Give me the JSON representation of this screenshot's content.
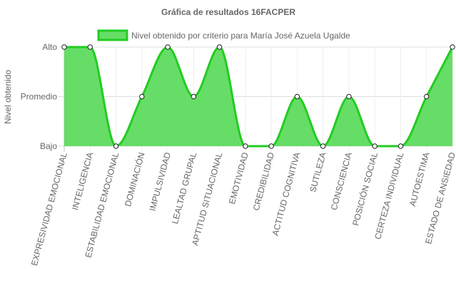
{
  "chart_data": {
    "type": "area",
    "title": "Gráfica de resultados 16FACPER",
    "ylabel": "Nivel obtenido",
    "xlabel": "",
    "y_levels": [
      "Bajo",
      "Promedio",
      "Alto"
    ],
    "ylim": [
      1,
      3
    ],
    "legend_position": "top",
    "grid": true,
    "categories": [
      "EXPRESIVIDAD EMOCIONAL",
      "INTELIGENCIA",
      "ESTABILIDAD EMOCIONAL",
      "DOMINACIÓN",
      "IMPULSIVIDAD",
      "LEALTAD GRUPAL",
      "APTITUD SITUACIONAL",
      "EMOTIVIDAD",
      "CREDIBILIDAD",
      "ACTITUD COGNITIVA",
      "SUTILEZA",
      "CONSCIENCIA",
      "POSICIÓN SOCIAL",
      "CERTEZA INDIVIDUAL",
      "AUTOESTIMA",
      "ESTADO DE ANSIEDAD"
    ],
    "series": [
      {
        "name": "Nivel obtenido por criterio para María José Azuela Ugalde",
        "values": [
          3,
          3,
          1,
          2,
          3,
          2,
          3,
          1,
          1,
          2,
          1,
          2,
          1,
          1,
          2,
          3
        ],
        "line_color": "#22cc22",
        "fill_color": "#66dd66"
      }
    ]
  }
}
